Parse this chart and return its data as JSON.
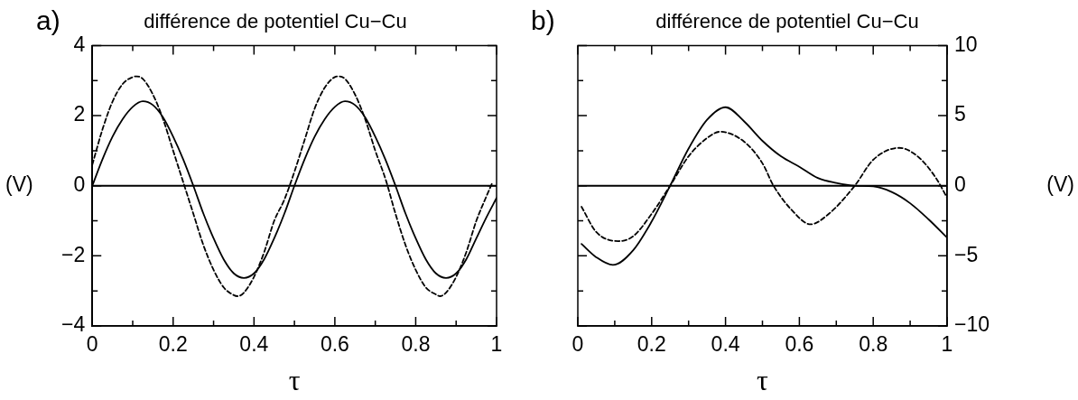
{
  "chart_data": [
    {
      "type": "line",
      "title": "différence de potentiel Cu−Cu",
      "xlabel": "τ",
      "ylabel": "(V)",
      "annotations": [
        "a)"
      ],
      "xlim": [
        0,
        1
      ],
      "xticks": [
        0,
        {
          "value": 0.1,
          "label": null
        },
        0.2,
        {
          "value": 0.3,
          "label": null
        },
        0.4,
        {
          "value": 0.5,
          "label": null
        },
        0.6,
        {
          "value": 0.7,
          "label": null
        },
        0.8,
        {
          "value": 0.9,
          "label": null
        },
        1
      ],
      "ylim": [
        -4,
        4
      ],
      "yticks": [
        {
          "value": -4,
          "label": "−4"
        },
        {
          "value": -3,
          "label": null
        },
        {
          "value": -2,
          "label": "−2"
        },
        {
          "value": -1,
          "label": null
        },
        0,
        {
          "value": 1,
          "label": null
        },
        2,
        {
          "value": 3,
          "label": null
        },
        4
      ],
      "ref_lines": [
        {
          "axis": "y",
          "value": 0,
          "color": "#000000"
        }
      ],
      "series": [
        {
          "color": "#000000",
          "line_style": "solid",
          "x": [
            0,
            0.025,
            0.05,
            0.075,
            0.1,
            0.125,
            0.15,
            0.175,
            0.2,
            0.225,
            0.25,
            0.275,
            0.3,
            0.325,
            0.35,
            0.375,
            0.4,
            0.425,
            0.45,
            0.475,
            0.5,
            0.525,
            0.55,
            0.575,
            0.6,
            0.625,
            0.65,
            0.675,
            0.7,
            0.725,
            0.75,
            0.775,
            0.8,
            0.825,
            0.85,
            0.875,
            0.9,
            0.925,
            0.95,
            0.975,
            1
          ],
          "values": [
            0,
            0.75,
            1.4,
            1.9,
            2.25,
            2.41,
            2.3,
            1.95,
            1.4,
            0.75,
            0,
            -0.8,
            -1.5,
            -2.1,
            -2.5,
            -2.63,
            -2.5,
            -2.1,
            -1.5,
            -0.8,
            0,
            0.75,
            1.4,
            1.9,
            2.25,
            2.41,
            2.3,
            1.95,
            1.4,
            0.75,
            0,
            -0.8,
            -1.5,
            -2.1,
            -2.5,
            -2.63,
            -2.5,
            -2.1,
            -1.5,
            -0.9,
            -0.35
          ]
        },
        {
          "color": "#000000",
          "line_style": "dashed",
          "x": [
            0,
            0.025,
            0.05,
            0.075,
            0.1,
            0.11,
            0.125,
            0.15,
            0.175,
            0.2,
            0.225,
            0.25,
            0.275,
            0.3,
            0.325,
            0.35,
            0.36,
            0.375,
            0.4,
            0.425,
            0.45,
            0.475,
            0.5,
            0.525,
            0.55,
            0.575,
            0.6,
            0.61,
            0.625,
            0.65,
            0.675,
            0.7,
            0.725,
            0.75,
            0.775,
            0.8,
            0.825,
            0.85,
            0.86,
            0.875,
            0.9,
            0.925,
            0.95,
            0.975,
            0.99
          ],
          "values": [
            0.6,
            1.6,
            2.4,
            2.9,
            3.1,
            3.12,
            3.05,
            2.6,
            1.9,
            1,
            0.1,
            -0.8,
            -1.7,
            -2.4,
            -2.9,
            -3.12,
            -3.15,
            -3.05,
            -2.6,
            -1.9,
            -1,
            -0.4,
            0.4,
            1.3,
            2.2,
            2.8,
            3.1,
            3.12,
            3.05,
            2.6,
            1.9,
            1,
            0.2,
            -0.8,
            -1.7,
            -2.4,
            -2.9,
            -3.1,
            -3.15,
            -3.05,
            -2.6,
            -1.9,
            -1,
            -0.3,
            0.1
          ]
        }
      ]
    },
    {
      "type": "line",
      "title": "différence de potentiel Cu−Cu",
      "xlabel": "τ",
      "y2label": "(V)",
      "annotations": [
        "b)"
      ],
      "xlim": [
        0,
        1
      ],
      "xticks": [
        0,
        {
          "value": 0.1,
          "label": null
        },
        0.2,
        {
          "value": 0.3,
          "label": null
        },
        0.4,
        {
          "value": 0.5,
          "label": null
        },
        0.6,
        {
          "value": 0.7,
          "label": null
        },
        0.8,
        {
          "value": 0.9,
          "label": null
        },
        1
      ],
      "y2lim": [
        -10,
        10
      ],
      "y2ticks": [
        {
          "value": -10,
          "label": "−10"
        },
        {
          "value": -7.5,
          "label": null
        },
        {
          "value": -5,
          "label": "−5"
        },
        {
          "value": -2.5,
          "label": null
        },
        0,
        {
          "value": 2.5,
          "label": null
        },
        5,
        {
          "value": 7.5,
          "label": null
        },
        10
      ],
      "ref_lines": [
        {
          "axis": "y2",
          "value": 0,
          "color": "#000000"
        }
      ],
      "series": [
        {
          "color": "#000000",
          "line_style": "solid",
          "axis": "y2",
          "x": [
            0.01,
            0.05,
            0.095,
            0.15,
            0.2,
            0.25,
            0.3,
            0.35,
            0.4,
            0.45,
            0.5,
            0.55,
            0.6,
            0.65,
            0.7,
            0.75,
            0.8,
            0.85,
            0.9,
            0.95,
            1
          ],
          "values": [
            -4.15,
            -5.1,
            -5.65,
            -4.6,
            -2.55,
            0,
            2.65,
            4.7,
            5.6,
            4.6,
            3.2,
            2.1,
            1.35,
            0.55,
            0.2,
            0,
            -0.05,
            -0.45,
            -1.25,
            -2.4,
            -3.7
          ]
        },
        {
          "color": "#000000",
          "line_style": "dashed",
          "axis": "y2",
          "x": [
            0.01,
            0.05,
            0.11,
            0.15,
            0.2,
            0.25,
            0.3,
            0.35,
            0.385,
            0.45,
            0.5,
            0.53,
            0.58,
            0.63,
            0.68,
            0.75,
            0.8,
            0.87,
            0.92,
            0.97,
            1
          ],
          "values": [
            -1.5,
            -3.3,
            -3.95,
            -3.6,
            -2,
            0,
            2.1,
            3.4,
            3.85,
            3.15,
            1.6,
            0,
            -1.75,
            -2.75,
            -2,
            0,
            1.85,
            2.7,
            2.1,
            0.55,
            -0.85
          ]
        }
      ]
    }
  ]
}
